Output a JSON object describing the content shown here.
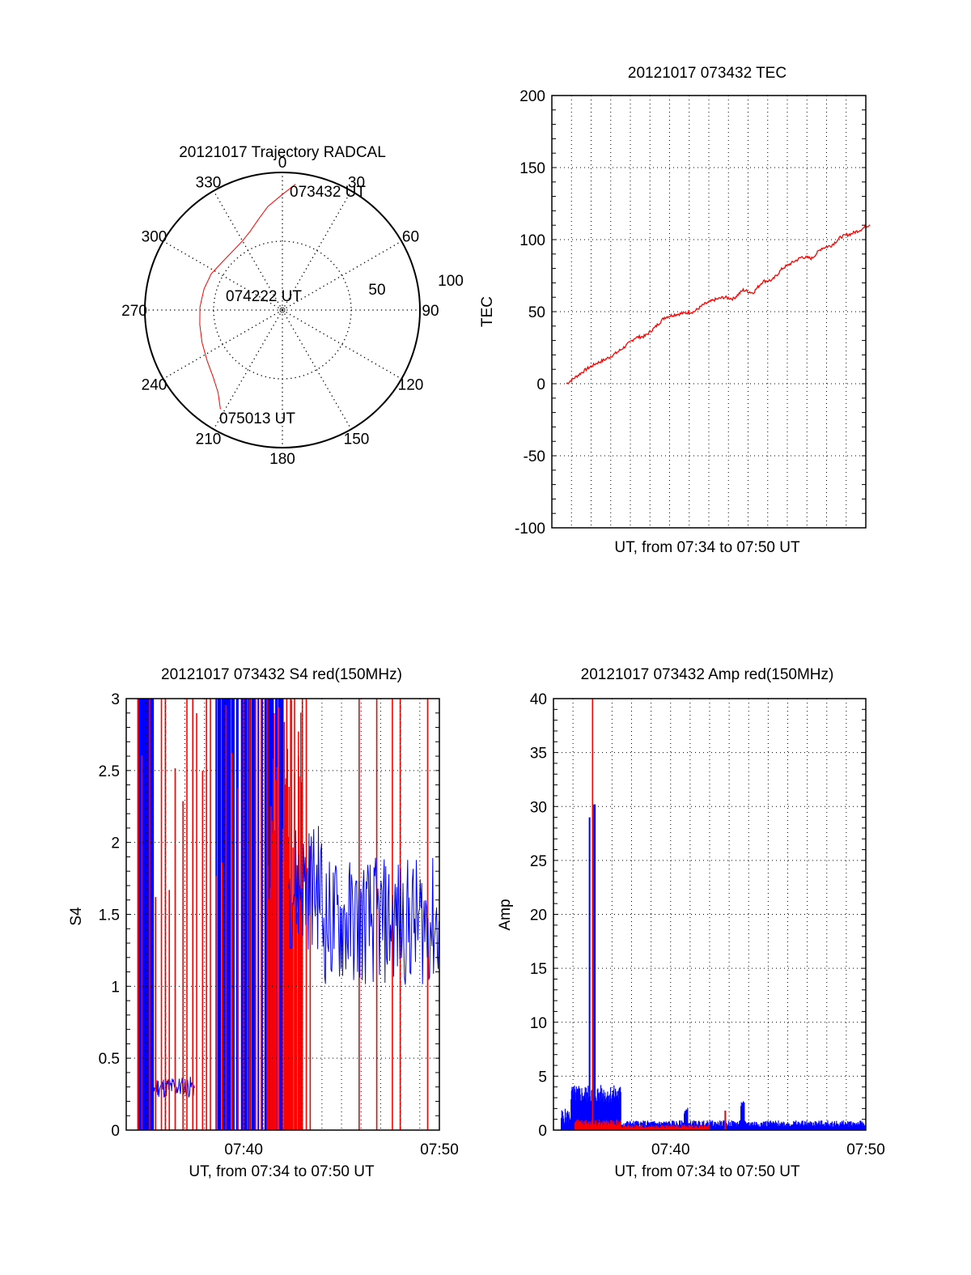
{
  "colors": {
    "red": "#ff0000",
    "blue": "#0000ff",
    "axis": "#000000"
  },
  "chart_data": [
    {
      "type": "polar",
      "title": "20121017 Trajectory RADCAL",
      "angle_labels": [
        "0",
        "30",
        "60",
        "90",
        "120",
        "150",
        "180",
        "210",
        "240",
        "270",
        "300",
        "330"
      ],
      "angles": [
        0,
        30,
        60,
        90,
        120,
        150,
        180,
        210,
        240,
        270,
        300,
        330
      ],
      "radius_labels": [
        "50",
        "100"
      ],
      "radius_values": [
        50,
        100
      ],
      "rlim": [
        0,
        100
      ],
      "series": [
        {
          "name": "trajectory",
          "color": "#ff0000",
          "points": [
            [
              6,
              92
            ],
            [
              0,
              84
            ],
            [
              -8,
              76
            ],
            [
              -15,
              68
            ],
            [
              -22,
              62
            ],
            [
              -30,
              58
            ],
            [
              -40,
              56
            ],
            [
              -52,
              56
            ],
            [
              -63,
              58
            ],
            [
              -75,
              59
            ],
            [
              -88,
              60
            ],
            [
              -100,
              61
            ],
            [
              -112,
              63
            ],
            [
              -124,
              66
            ],
            [
              -134,
              70
            ],
            [
              -142,
              76
            ],
            [
              -148,
              85
            ]
          ]
        }
      ],
      "annotations": [
        "073432 UT",
        "074222 UT",
        "075013 UT"
      ],
      "grid": true
    },
    {
      "type": "line",
      "title": "20121017 073432 TEC",
      "xlabel": "UT, from 07:34 to 07:50 UT",
      "ylabel": "TEC",
      "ylim": [
        -100,
        200
      ],
      "yticks": [
        "200",
        "150",
        "100",
        "50",
        "0",
        "-50",
        "-100"
      ],
      "ytick_values": [
        200,
        150,
        100,
        50,
        0,
        -50,
        -100
      ],
      "xlim_minutes": [
        0,
        16
      ],
      "grid": true,
      "series": [
        {
          "name": "TEC",
          "color": "#ff0000",
          "x": [
            0.5,
            1.0,
            1.5,
            2.0,
            2.5,
            3.0,
            3.5,
            4.0,
            4.5,
            5.0,
            5.5,
            6.0,
            6.5,
            7.0,
            7.5,
            8.0,
            8.5,
            9.0,
            9.5,
            10.0,
            10.5,
            11.0,
            11.5,
            12.0,
            12.5,
            13.0,
            13.5,
            14.0,
            14.5,
            15.0,
            15.5,
            16.0
          ],
          "y": [
            0,
            5,
            10,
            14,
            17,
            21,
            26,
            32,
            33,
            39,
            46,
            48,
            49,
            50,
            55,
            58,
            60,
            59,
            65,
            63,
            71,
            72,
            80,
            84,
            88,
            87,
            94,
            96,
            102,
            104,
            107,
            111
          ]
        }
      ]
    },
    {
      "type": "bar",
      "title": "20121017 073432 S4 red(150MHz)",
      "xlabel": "UT, from 07:34 to 07:50 UT",
      "ylabel": "S4",
      "ylim": [
        0,
        3
      ],
      "yticks": [
        "3",
        "2.5",
        "2",
        "1.5",
        "1",
        "0.5",
        "0"
      ],
      "ytick_values": [
        3,
        2.5,
        2,
        1.5,
        1,
        0.5,
        0
      ],
      "xticks": [
        "07:40",
        "07:50"
      ],
      "xtick_minutes": [
        6,
        16
      ],
      "xlim_minutes": [
        0,
        16
      ],
      "grid": true,
      "series": [
        {
          "name": "blue",
          "color": "#0000ff",
          "description_minutes": "dense 0-3 spikes 0.6-1.4 & 4.6-8.0; baseline ~0.3 at 1.0-2.5; noisy ~1.5 from 8.5-16"
        },
        {
          "name": "red",
          "color": "#ff0000",
          "spike_minutes": [
            0.6,
            0.8,
            1.2,
            1.5,
            1.8,
            2.0,
            2.2,
            2.5,
            2.9,
            3.1,
            3.4,
            3.6,
            3.9,
            4.1,
            4.3,
            4.6,
            4.9,
            5.1,
            5.4,
            5.7,
            6.0,
            6.3,
            6.6,
            6.9,
            7.2,
            7.5,
            7.8,
            8.0,
            8.2,
            8.4,
            8.6,
            8.8,
            9.0,
            9.2,
            9.4,
            11.9,
            13.6,
            15.4,
            14.0,
            12.8
          ]
        }
      ]
    },
    {
      "type": "bar",
      "title": "20121017 073432 Amp red(150MHz)",
      "xlabel": "UT, from 07:34 to 07:50 UT",
      "ylabel": "Amp",
      "ylim": [
        0,
        40
      ],
      "yticks": [
        "40",
        "35",
        "30",
        "25",
        "20",
        "15",
        "10",
        "5",
        "0"
      ],
      "ytick_values": [
        40,
        35,
        30,
        25,
        20,
        15,
        10,
        5,
        0
      ],
      "xticks": [
        "07:40",
        "07:50"
      ],
      "xtick_minutes": [
        6,
        16
      ],
      "xlim_minutes": [
        0,
        16
      ],
      "grid": true,
      "series": [
        {
          "name": "blue",
          "color": "#0000ff",
          "peak": 30.2,
          "peak_minute": 2.0,
          "segments": [
            {
              "from": 0.5,
              "to": 3.5,
              "level": 3.5
            },
            {
              "from": 3.5,
              "to": 16,
              "level": 0.6
            }
          ]
        },
        {
          "name": "red",
          "color": "#ff0000",
          "peak": 40,
          "peak_minute": 2.0,
          "segments": [
            {
              "from": 1.1,
              "to": 3.5,
              "level": 0.6
            },
            {
              "from": 3.5,
              "to": 8,
              "level": 0.4
            }
          ]
        }
      ]
    }
  ]
}
